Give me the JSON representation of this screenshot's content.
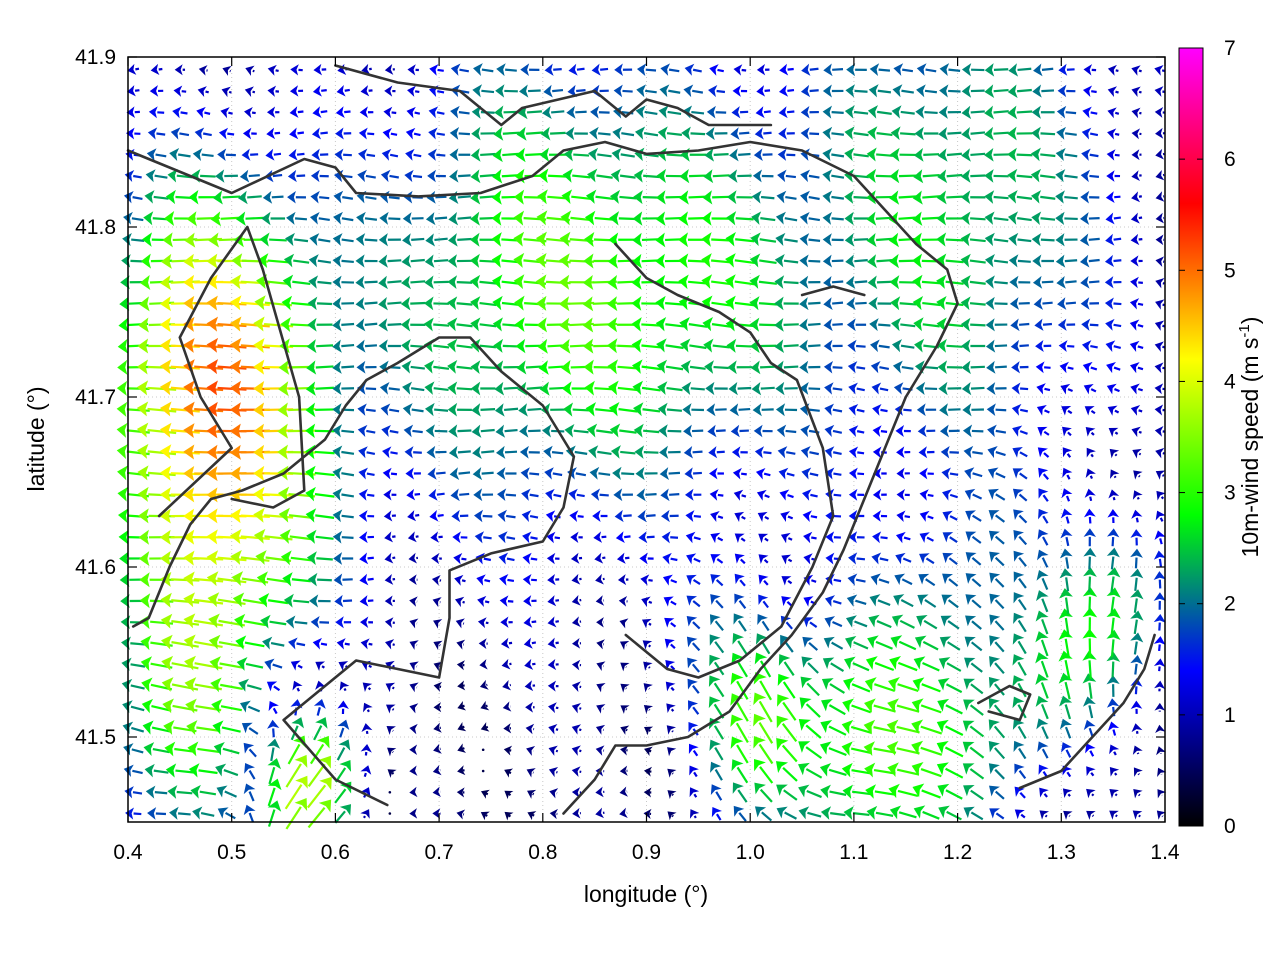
{
  "chart_data": {
    "type": "vector-field",
    "title": "",
    "xlabel": "longitude (°)",
    "ylabel": "latitude (°)",
    "xlim": [
      0.4,
      1.4
    ],
    "ylim": [
      41.45,
      41.9
    ],
    "xticks": [
      "0.4",
      "0.5",
      "0.6",
      "0.7",
      "0.8",
      "0.9",
      "1.0",
      "1.1",
      "1.2",
      "1.3",
      "1.4"
    ],
    "yticks": [
      "41.5",
      "41.6",
      "41.7",
      "41.8",
      "41.9"
    ],
    "grid": true,
    "colorbar": {
      "label": "10m-wind speed (m s-1)",
      "label_main": "10m-wind speed (m s",
      "label_sup": "-1",
      "label_end": ")",
      "range": [
        0,
        7
      ],
      "ticks": [
        "0",
        "1",
        "2",
        "3",
        "4",
        "5",
        "6",
        "7"
      ],
      "colors": [
        "#000000",
        "#0000ff",
        "#00ff00",
        "#ffff00",
        "#ff0000",
        "#ff00ff"
      ]
    },
    "wind_field": {
      "lon_start": 0.405,
      "lon_end": 1.395,
      "lon_step": 0.0225,
      "lat_start": 41.455,
      "lat_end": 41.895,
      "lat_step": 0.0125,
      "background": {
        "u": -0.6,
        "v": 0.05
      },
      "features": [
        {
          "lon": 0.48,
          "lat": 41.73,
          "r": 0.11,
          "u": -3.6,
          "v": 0.05
        },
        {
          "lon": 0.78,
          "lat": 41.77,
          "r": 0.15,
          "u": -2.2,
          "v": 0.0
        },
        {
          "lon": 0.95,
          "lat": 41.76,
          "r": 0.12,
          "u": -1.5,
          "v": 0.1
        },
        {
          "lon": 1.2,
          "lat": 41.81,
          "r": 0.16,
          "u": -2.0,
          "v": 0.0
        },
        {
          "lon": 1.0,
          "lat": 41.52,
          "r": 0.07,
          "u": -0.4,
          "v": 2.8
        },
        {
          "lon": 1.33,
          "lat": 41.57,
          "r": 0.09,
          "u": 1.0,
          "v": 2.4
        },
        {
          "lon": 1.2,
          "lat": 41.52,
          "r": 0.1,
          "u": -1.4,
          "v": 1.2
        },
        {
          "lon": 0.57,
          "lat": 41.47,
          "r": 0.06,
          "u": 3.2,
          "v": 2.8
        },
        {
          "lon": 0.46,
          "lat": 41.5,
          "r": 0.09,
          "u": -2.0,
          "v": 0.4
        },
        {
          "lon": 0.5,
          "lat": 41.62,
          "r": 0.1,
          "u": -2.2,
          "v": 0.1
        },
        {
          "lon": 1.1,
          "lat": 41.48,
          "r": 0.08,
          "u": -1.9,
          "v": 0.0
        }
      ]
    },
    "contours": [
      [
        [
          0.405,
          41.565
        ],
        [
          0.42,
          41.57
        ],
        [
          0.44,
          41.6
        ],
        [
          0.46,
          41.625
        ],
        [
          0.48,
          41.64
        ],
        [
          0.51,
          41.645
        ],
        [
          0.55,
          41.655
        ],
        [
          0.59,
          41.675
        ],
        [
          0.61,
          41.695
        ],
        [
          0.63,
          41.71
        ],
        [
          0.66,
          41.72
        ],
        [
          0.7,
          41.735
        ],
        [
          0.73,
          41.735
        ],
        [
          0.76,
          41.715
        ],
        [
          0.8,
          41.695
        ],
        [
          0.83,
          41.665
        ],
        [
          0.82,
          41.635
        ],
        [
          0.8,
          41.615
        ],
        [
          0.75,
          41.608
        ],
        [
          0.71,
          41.598
        ],
        [
          0.71,
          41.57
        ],
        [
          0.7,
          41.535
        ],
        [
          0.62,
          41.545
        ],
        [
          0.55,
          41.51
        ],
        [
          0.6,
          41.475
        ],
        [
          0.65,
          41.46
        ]
      ],
      [
        [
          0.43,
          41.63
        ],
        [
          0.5,
          41.67
        ],
        [
          0.47,
          41.7
        ],
        [
          0.45,
          41.735
        ],
        [
          0.48,
          41.77
        ],
        [
          0.515,
          41.8
        ],
        [
          0.53,
          41.775
        ],
        [
          0.565,
          41.7
        ],
        [
          0.57,
          41.645
        ],
        [
          0.54,
          41.635
        ],
        [
          0.5,
          41.64
        ]
      ],
      [
        [
          0.4,
          41.845
        ],
        [
          0.44,
          41.835
        ],
        [
          0.5,
          41.82
        ],
        [
          0.57,
          41.84
        ],
        [
          0.6,
          41.835
        ],
        [
          0.62,
          41.82
        ],
        [
          0.68,
          41.818
        ],
        [
          0.74,
          41.82
        ],
        [
          0.79,
          41.83
        ],
        [
          0.82,
          41.845
        ],
        [
          0.86,
          41.85
        ],
        [
          0.9,
          41.843
        ],
        [
          0.95,
          41.845
        ],
        [
          1.0,
          41.85
        ],
        [
          1.05,
          41.845
        ],
        [
          1.1,
          41.83
        ],
        [
          1.13,
          41.81
        ],
        [
          1.16,
          41.79
        ],
        [
          1.19,
          41.775
        ],
        [
          1.2,
          41.755
        ],
        [
          1.18,
          41.73
        ],
        [
          1.15,
          41.7
        ],
        [
          1.13,
          41.67
        ],
        [
          1.11,
          41.64
        ],
        [
          1.09,
          41.61
        ],
        [
          1.07,
          41.585
        ],
        [
          1.04,
          41.56
        ],
        [
          1.01,
          41.54
        ],
        [
          0.98,
          41.515
        ],
        [
          0.94,
          41.5
        ],
        [
          0.9,
          41.495
        ],
        [
          0.87,
          41.495
        ],
        [
          0.85,
          41.475
        ],
        [
          0.82,
          41.455
        ]
      ],
      [
        [
          0.6,
          41.895
        ],
        [
          0.66,
          41.885
        ],
        [
          0.72,
          41.88
        ],
        [
          0.76,
          41.86
        ],
        [
          0.78,
          41.87
        ],
        [
          0.85,
          41.88
        ],
        [
          0.88,
          41.865
        ],
        [
          0.9,
          41.875
        ],
        [
          0.93,
          41.87
        ],
        [
          0.96,
          41.86
        ],
        [
          1.02,
          41.86
        ]
      ],
      [
        [
          0.87,
          41.79
        ],
        [
          0.9,
          41.77
        ],
        [
          0.93,
          41.76
        ],
        [
          0.97,
          41.75
        ],
        [
          1.0,
          41.738
        ],
        [
          1.02,
          41.72
        ],
        [
          1.045,
          41.71
        ],
        [
          1.07,
          41.67
        ],
        [
          1.08,
          41.63
        ],
        [
          1.06,
          41.6
        ],
        [
          1.03,
          41.565
        ],
        [
          0.99,
          41.545
        ],
        [
          0.95,
          41.535
        ],
        [
          0.92,
          41.54
        ],
        [
          0.9,
          41.55
        ],
        [
          0.88,
          41.56
        ]
      ],
      [
        [
          1.26,
          41.47
        ],
        [
          1.3,
          41.48
        ],
        [
          1.33,
          41.5
        ],
        [
          1.36,
          41.52
        ],
        [
          1.38,
          41.54
        ],
        [
          1.39,
          41.56
        ]
      ],
      [
        [
          1.05,
          41.76
        ],
        [
          1.08,
          41.765
        ],
        [
          1.11,
          41.76
        ]
      ],
      [
        [
          1.22,
          41.52
        ],
        [
          1.25,
          41.53
        ],
        [
          1.27,
          41.525
        ],
        [
          1.26,
          41.51
        ],
        [
          1.23,
          41.515
        ]
      ]
    ]
  }
}
